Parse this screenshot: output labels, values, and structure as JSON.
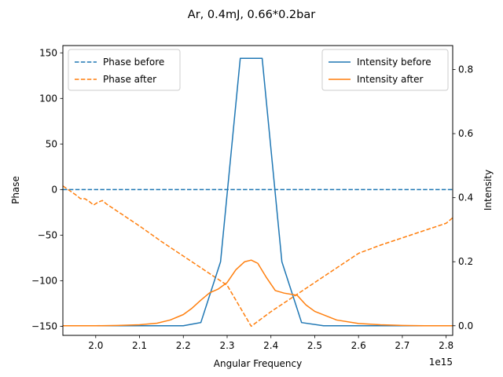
{
  "chart_data": {
    "type": "line",
    "title": "Ar, 0.4mJ, 0.66*0.2bar",
    "xlabel": "Angular Frequency",
    "ylabel_left": "Phase",
    "ylabel_right": "Intensity",
    "x_offset_label": "1e15",
    "xlim": [
      1.925,
      2.815
    ],
    "ylim_left": [
      -160,
      158
    ],
    "ylim_right": [
      -0.03,
      0.875
    ],
    "x_ticks": [
      2.0,
      2.1,
      2.2,
      2.3,
      2.4,
      2.5,
      2.6,
      2.7,
      2.8
    ],
    "x_tick_labels": [
      "2.0",
      "2.1",
      "2.2",
      "2.3",
      "2.4",
      "2.5",
      "2.6",
      "2.7",
      "2.8"
    ],
    "left_ticks": [
      -150,
      -100,
      -50,
      0,
      50,
      100,
      150
    ],
    "left_tick_labels": [
      "−150",
      "−100",
      "−50",
      "0",
      "50",
      "100",
      "150"
    ],
    "right_ticks": [
      0.0,
      0.2,
      0.4,
      0.6,
      0.8
    ],
    "right_tick_labels": [
      "0.0",
      "0.2",
      "0.4",
      "0.6",
      "0.8"
    ],
    "grid": false,
    "series": [
      {
        "name": "Phase before",
        "axis": "left",
        "style": "dashed",
        "color": "#1f77b4",
        "x": [
          1.925,
          2.815
        ],
        "y": [
          0,
          0
        ]
      },
      {
        "name": "Phase after",
        "axis": "left",
        "style": "dashed",
        "color": "#ff7f0e",
        "x": [
          1.925,
          1.94,
          1.955,
          1.965,
          1.975,
          1.985,
          1.995,
          2.005,
          2.015,
          2.025,
          2.05,
          2.1,
          2.15,
          2.2,
          2.25,
          2.3,
          2.355,
          2.4,
          2.45,
          2.5,
          2.55,
          2.6,
          2.65,
          2.7,
          2.75,
          2.8,
          2.815
        ],
        "y": [
          4,
          -1,
          -6,
          -10,
          -10,
          -13,
          -17,
          -14,
          -12,
          -16,
          -24,
          -40,
          -57,
          -73,
          -89,
          -105,
          -150,
          -134,
          -118,
          -102,
          -86,
          -70,
          -61,
          -53,
          -45,
          -37,
          -31
        ]
      },
      {
        "name": "Intensity before",
        "axis": "right",
        "style": "solid",
        "color": "#1f77b4",
        "x": [
          1.925,
          2.18,
          2.2,
          2.24,
          2.285,
          2.33,
          2.38,
          2.425,
          2.47,
          2.52,
          2.815
        ],
        "y": [
          0.0,
          0.0,
          0.0,
          0.01,
          0.2,
          0.835,
          0.835,
          0.2,
          0.01,
          0.0,
          0.0
        ]
      },
      {
        "name": "Intensity after",
        "axis": "right",
        "style": "solid",
        "color": "#ff7f0e",
        "x": [
          1.925,
          2.0,
          2.05,
          2.1,
          2.14,
          2.17,
          2.2,
          2.22,
          2.24,
          2.26,
          2.28,
          2.3,
          2.32,
          2.34,
          2.355,
          2.37,
          2.39,
          2.41,
          2.43,
          2.46,
          2.48,
          2.5,
          2.55,
          2.6,
          2.65,
          2.7,
          2.75,
          2.815
        ],
        "y": [
          0.0,
          0.0,
          0.001,
          0.003,
          0.008,
          0.018,
          0.035,
          0.055,
          0.08,
          0.103,
          0.115,
          0.135,
          0.175,
          0.2,
          0.205,
          0.195,
          0.15,
          0.11,
          0.102,
          0.095,
          0.065,
          0.045,
          0.018,
          0.007,
          0.003,
          0.001,
          0.0,
          0.0
        ]
      }
    ],
    "legend_left": {
      "position": "upper-left",
      "entries": [
        "Phase before",
        "Phase after"
      ]
    },
    "legend_right": {
      "position": "upper-right",
      "entries": [
        "Intensity before",
        "Intensity after"
      ]
    }
  }
}
